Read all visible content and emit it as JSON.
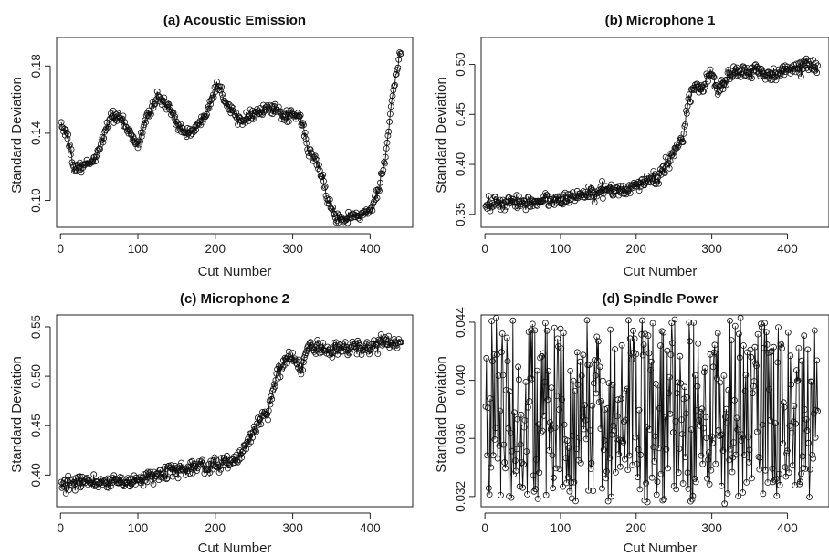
{
  "chart_data": [
    {
      "type": "line",
      "title": "(a) Acoustic Emission",
      "xlabel": "Cut Number",
      "ylabel": "Standard Deviation",
      "xlim": [
        -5,
        455
      ],
      "ylim": [
        0.084,
        0.197
      ],
      "xticks": [
        0,
        100,
        200,
        300,
        400
      ],
      "xtick_labels": [
        "0",
        "100",
        "200",
        "300",
        "400"
      ],
      "yticks": [
        0.1,
        0.14,
        0.18
      ],
      "ytick_labels": [
        "0.10",
        "0.14",
        "0.18"
      ],
      "n_points": 440,
      "trend": [
        [
          1,
          0.146
        ],
        [
          10,
          0.136
        ],
        [
          18,
          0.118
        ],
        [
          30,
          0.12
        ],
        [
          45,
          0.125
        ],
        [
          65,
          0.15
        ],
        [
          75,
          0.15
        ],
        [
          90,
          0.14
        ],
        [
          100,
          0.132
        ],
        [
          110,
          0.148
        ],
        [
          125,
          0.162
        ],
        [
          140,
          0.155
        ],
        [
          160,
          0.14
        ],
        [
          175,
          0.142
        ],
        [
          190,
          0.155
        ],
        [
          203,
          0.17
        ],
        [
          215,
          0.158
        ],
        [
          230,
          0.148
        ],
        [
          250,
          0.152
        ],
        [
          270,
          0.155
        ],
        [
          290,
          0.15
        ],
        [
          310,
          0.15
        ],
        [
          320,
          0.13
        ],
        [
          335,
          0.12
        ],
        [
          345,
          0.1
        ],
        [
          355,
          0.09
        ],
        [
          375,
          0.09
        ],
        [
          400,
          0.093
        ],
        [
          410,
          0.105
        ],
        [
          420,
          0.125
        ],
        [
          430,
          0.165
        ],
        [
          440,
          0.19
        ]
      ],
      "noise": 0.005,
      "grid": false,
      "markers": "open-circle"
    },
    {
      "type": "line",
      "title": "(b) Microphone 1",
      "xlabel": "Cut Number",
      "ylabel": "Standard Deviation",
      "xlim": [
        -5,
        455
      ],
      "ylim": [
        0.337,
        0.527
      ],
      "xticks": [
        0,
        100,
        200,
        300,
        400
      ],
      "xtick_labels": [
        "0",
        "100",
        "200",
        "300",
        "400"
      ],
      "yticks": [
        0.35,
        0.4,
        0.45,
        0.5
      ],
      "ytick_labels": [
        "0.35",
        "0.40",
        "0.45",
        "0.50"
      ],
      "n_points": 440,
      "trend": [
        [
          1,
          0.36
        ],
        [
          50,
          0.362
        ],
        [
          100,
          0.365
        ],
        [
          150,
          0.372
        ],
        [
          200,
          0.378
        ],
        [
          230,
          0.388
        ],
        [
          245,
          0.405
        ],
        [
          255,
          0.42
        ],
        [
          262,
          0.43
        ],
        [
          268,
          0.46
        ],
        [
          275,
          0.475
        ],
        [
          290,
          0.48
        ],
        [
          300,
          0.49
        ],
        [
          310,
          0.47
        ],
        [
          320,
          0.49
        ],
        [
          340,
          0.495
        ],
        [
          360,
          0.492
        ],
        [
          380,
          0.49
        ],
        [
          400,
          0.495
        ],
        [
          420,
          0.498
        ],
        [
          440,
          0.5
        ]
      ],
      "noise": 0.011,
      "grid": false,
      "markers": "open-circle"
    },
    {
      "type": "line",
      "title": "(c) Microphone 2",
      "xlabel": "Cut Number",
      "ylabel": "Standard Deviation",
      "xlim": [
        -5,
        455
      ],
      "ylim": [
        0.368,
        0.562
      ],
      "xticks": [
        0,
        100,
        200,
        300,
        400
      ],
      "xtick_labels": [
        "0",
        "100",
        "200",
        "300",
        "400"
      ],
      "yticks": [
        0.4,
        0.45,
        0.5,
        0.55
      ],
      "ytick_labels": [
        "0.40",
        "0.45",
        "0.50",
        "0.55"
      ],
      "n_points": 440,
      "trend": [
        [
          1,
          0.39
        ],
        [
          50,
          0.393
        ],
        [
          100,
          0.395
        ],
        [
          150,
          0.405
        ],
        [
          200,
          0.41
        ],
        [
          225,
          0.415
        ],
        [
          245,
          0.435
        ],
        [
          258,
          0.455
        ],
        [
          268,
          0.465
        ],
        [
          278,
          0.5
        ],
        [
          290,
          0.515
        ],
        [
          300,
          0.52
        ],
        [
          310,
          0.505
        ],
        [
          320,
          0.53
        ],
        [
          350,
          0.527
        ],
        [
          380,
          0.528
        ],
        [
          410,
          0.532
        ],
        [
          440,
          0.535
        ]
      ],
      "noise": 0.011,
      "grid": false,
      "markers": "open-circle"
    },
    {
      "type": "line",
      "title": "(d) Spindle Power",
      "xlabel": "Cut Number",
      "ylabel": "Standard Deviation",
      "xlim": [
        -5,
        455
      ],
      "ylim": [
        0.0313,
        0.0445
      ],
      "xticks": [
        0,
        100,
        200,
        300,
        400
      ],
      "xtick_labels": [
        "0",
        "100",
        "200",
        "300",
        "400"
      ],
      "yticks": [
        0.032,
        0.036,
        0.04,
        0.044
      ],
      "ytick_labels": [
        "0.032",
        "0.036",
        "0.040",
        "0.044"
      ],
      "n_points": 440,
      "range": [
        0.0315,
        0.0443
      ],
      "grid": false,
      "markers": "open-circle"
    }
  ]
}
